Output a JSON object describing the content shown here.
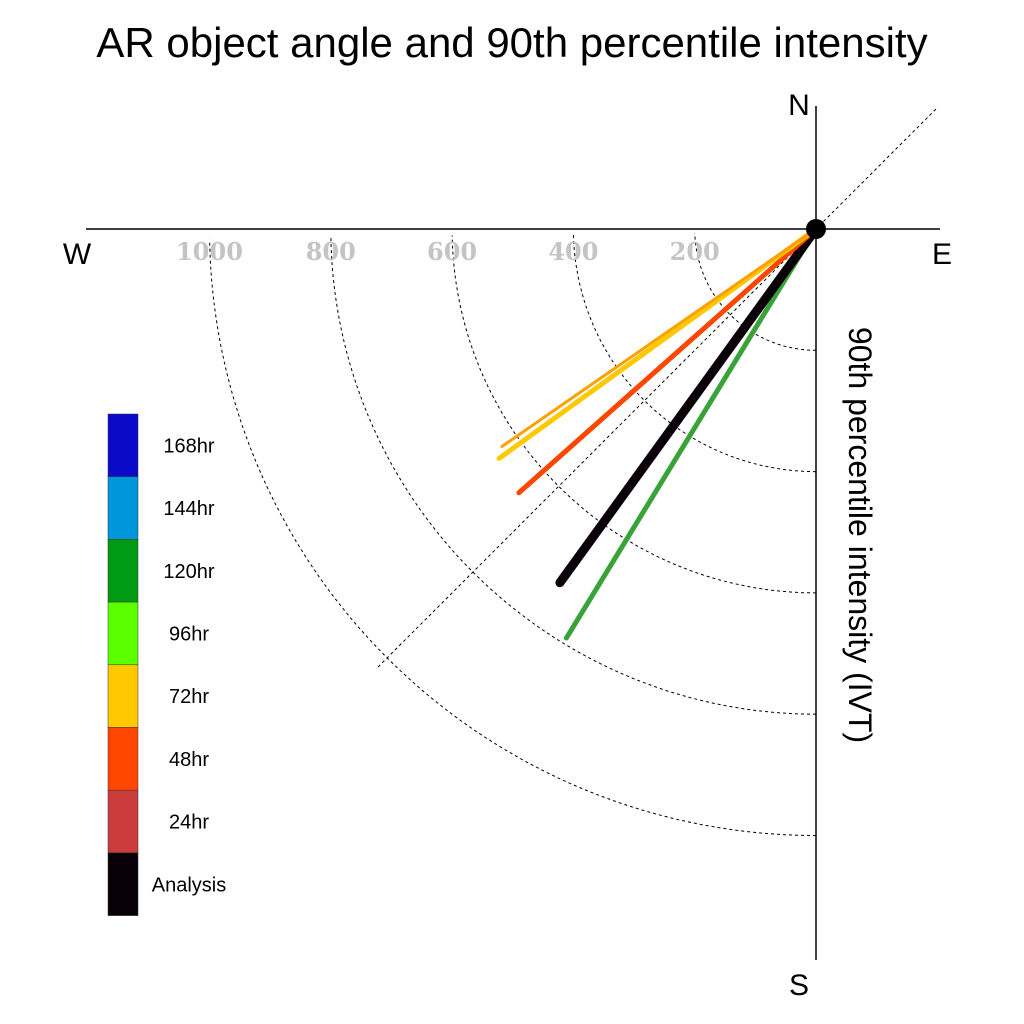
{
  "chart_data": {
    "type": "polar-vector",
    "title": "AR object angle and 90th percentile intensity",
    "radial_label": "90th percentile intensity (IVT)",
    "compass": {
      "north": "N",
      "east": "E",
      "south": "S",
      "west": "W"
    },
    "rings": [
      200,
      400,
      600,
      800,
      1000
    ],
    "ring_labels": [
      "200",
      "400",
      "600",
      "800",
      "1000"
    ],
    "radial_range": [
      0,
      1000
    ],
    "legend": {
      "entries": [
        {
          "label": "168hr",
          "color": "#0a0ac8"
        },
        {
          "label": "144hr",
          "color": "#0096dc"
        },
        {
          "label": "120hr",
          "color": "#009a14"
        },
        {
          "label": "96hr",
          "color": "#5aff00"
        },
        {
          "label": "72hr",
          "color": "#ffc800"
        },
        {
          "label": "48hr",
          "color": "#ff4600"
        },
        {
          "label": "24hr",
          "color": "#cd3c3c"
        },
        {
          "label": "Analysis",
          "color": "#0a0008"
        }
      ]
    },
    "vectors": [
      {
        "series": "120hr",
        "color": "#39a339",
        "intensity": 790,
        "angle_deg": -121.4,
        "width": 5
      },
      {
        "series": "Analysis",
        "color": "#0a0008",
        "intensity": 720,
        "angle_deg": -125.9,
        "width": 9
      },
      {
        "series": "48hr",
        "color": "#ff4600",
        "intensity": 655,
        "angle_deg": -138.4,
        "width": 5
      },
      {
        "series": "72hr",
        "color": "#ffc800",
        "intensity": 645,
        "angle_deg": -144.1,
        "width": 5
      },
      {
        "series": "72hr",
        "color": "#ffa000",
        "intensity": 630,
        "angle_deg": -145.3,
        "width": 3
      }
    ]
  }
}
